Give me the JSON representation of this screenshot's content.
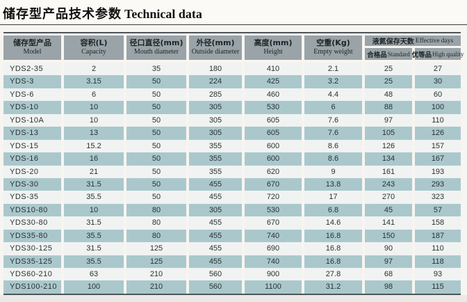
{
  "title": {
    "cn": "储存型产品技术参数",
    "en": "Technical data"
  },
  "table": {
    "columns": [
      {
        "cn": "储存型产品",
        "en": "Model"
      },
      {
        "cn": "容积(L)",
        "en": "Capacity"
      },
      {
        "cn": "径口直径(mm)",
        "en": "Mouth diameter"
      },
      {
        "cn": "外径(mm)",
        "en": "Outside diameter"
      },
      {
        "cn": "高度(mm)",
        "en": "Height"
      },
      {
        "cn": "空重(Kg)",
        "en": "Empty weight"
      }
    ],
    "group_column": {
      "cn": "液氮保存天数",
      "en": "Effective days",
      "sub": [
        {
          "cn": "合格品",
          "en": "Standard"
        },
        {
          "cn": "优等品",
          "en": "High quality"
        }
      ]
    },
    "rows": [
      [
        "YDS2-35",
        "2",
        "35",
        "180",
        "410",
        "2.1",
        "25",
        "27"
      ],
      [
        "YDS-3",
        "3.15",
        "50",
        "224",
        "425",
        "3.2",
        "25",
        "30"
      ],
      [
        "YDS-6",
        "6",
        "50",
        "285",
        "460",
        "4.4",
        "48",
        "60"
      ],
      [
        "YDS-10",
        "10",
        "50",
        "305",
        "530",
        "6",
        "88",
        "100"
      ],
      [
        "YDS-10A",
        "10",
        "50",
        "305",
        "605",
        "7.6",
        "97",
        "110"
      ],
      [
        "YDS-13",
        "13",
        "50",
        "305",
        "605",
        "7.6",
        "105",
        "126"
      ],
      [
        "YDS-15",
        "15.2",
        "50",
        "355",
        "600",
        "8.6",
        "126",
        "157"
      ],
      [
        "YDS-16",
        "16",
        "50",
        "355",
        "600",
        "8.6",
        "134",
        "167"
      ],
      [
        "YDS-20",
        "21",
        "50",
        "355",
        "620",
        "9",
        "161",
        "193"
      ],
      [
        "YDS-30",
        "31.5",
        "50",
        "455",
        "670",
        "13.8",
        "243",
        "293"
      ],
      [
        "YDS-35",
        "35.5",
        "50",
        "455",
        "720",
        "17",
        "270",
        "323"
      ],
      [
        "YDS10-80",
        "10",
        "80",
        "305",
        "530",
        "6.8",
        "45",
        "57"
      ],
      [
        "YDS30-80",
        "31.5",
        "80",
        "455",
        "670",
        "14.6",
        "141",
        "158"
      ],
      [
        "YDS35-80",
        "35.5",
        "80",
        "455",
        "740",
        "16.8",
        "150",
        "187"
      ],
      [
        "YDS30-125",
        "31.5",
        "125",
        "455",
        "690",
        "16.8",
        "90",
        "110"
      ],
      [
        "YDS35-125",
        "35.5",
        "125",
        "455",
        "740",
        "16.8",
        "97",
        "118"
      ],
      [
        "YDS60-210",
        "63",
        "210",
        "560",
        "900",
        "27.8",
        "68",
        "93"
      ],
      [
        "YDS100-210",
        "100",
        "210",
        "560",
        "1100",
        "31.2",
        "98",
        "115"
      ]
    ]
  },
  "colors": {
    "header_bg": "#9aa3a7",
    "row_light": "#f0f3f1",
    "row_alt": "#aac8cc",
    "page_bg": "#f7f5f1",
    "border_dark": "#4e5457",
    "text_dark": "#232a2c"
  }
}
